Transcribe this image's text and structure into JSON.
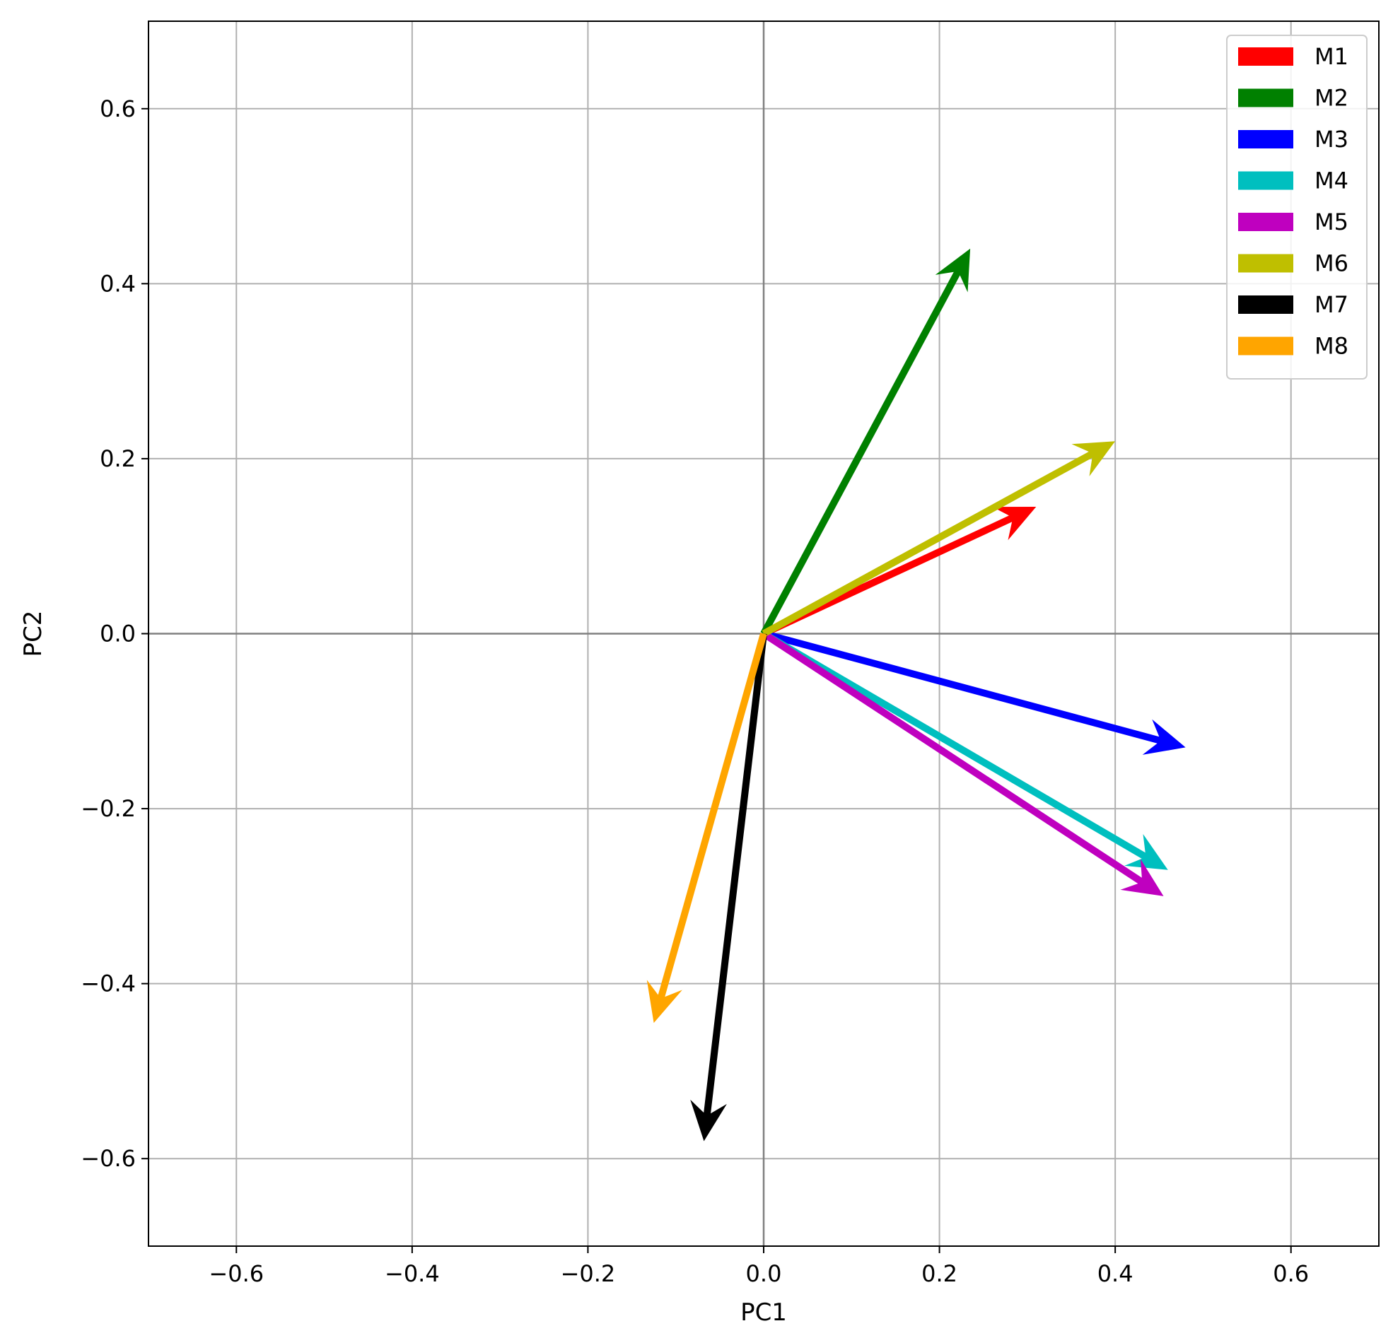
{
  "chart_data": {
    "type": "quiver",
    "title": "",
    "xlabel": "PC1",
    "ylabel": "PC2",
    "xlim": [
      -0.7,
      0.7
    ],
    "ylim": [
      -0.7,
      0.7
    ],
    "xticks": [
      -0.6,
      -0.4,
      -0.2,
      0.0,
      0.2,
      0.4,
      0.6
    ],
    "yticks": [
      -0.6,
      -0.4,
      -0.2,
      0.0,
      0.2,
      0.4,
      0.6
    ],
    "xtick_labels": [
      "−0.6",
      "−0.4",
      "−0.2",
      "0.0",
      "0.2",
      "0.4",
      "0.6"
    ],
    "ytick_labels": [
      "−0.6",
      "−0.4",
      "−0.2",
      "0.0",
      "0.2",
      "0.4",
      "0.6"
    ],
    "grid": true,
    "legend_position": "top-right",
    "origin": [
      0,
      0
    ],
    "series": [
      {
        "name": "M1",
        "color": "#ff0000",
        "x": 0.31,
        "y": 0.145
      },
      {
        "name": "M2",
        "color": "#008000",
        "x": 0.235,
        "y": 0.44
      },
      {
        "name": "M3",
        "color": "#0000ff",
        "x": 0.48,
        "y": -0.13
      },
      {
        "name": "M4",
        "color": "#00bfbf",
        "x": 0.46,
        "y": -0.27
      },
      {
        "name": "M5",
        "color": "#bf00bf",
        "x": 0.455,
        "y": -0.3
      },
      {
        "name": "M6",
        "color": "#bfbf00",
        "x": 0.4,
        "y": 0.22
      },
      {
        "name": "M7",
        "color": "#000000",
        "x": -0.068,
        "y": -0.58
      },
      {
        "name": "M8",
        "color": "#ffa500",
        "x": -0.125,
        "y": -0.445
      }
    ]
  }
}
